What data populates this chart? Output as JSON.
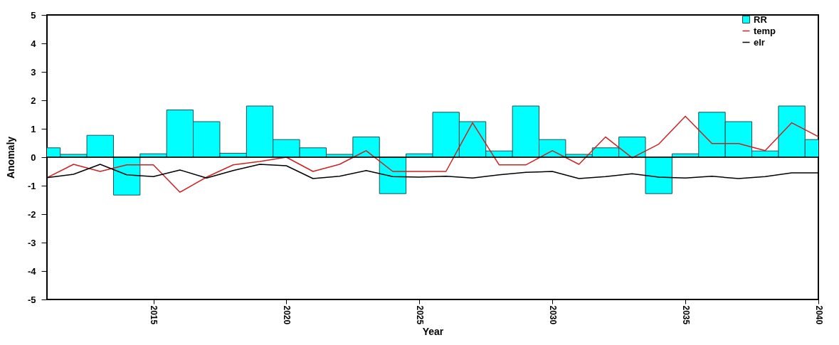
{
  "chart_data": {
    "type": "bar",
    "xlabel": "Year",
    "ylabel": "Anomaly",
    "x": [
      2011,
      2012,
      2013,
      2014,
      2015,
      2016,
      2017,
      2018,
      2019,
      2020,
      2021,
      2022,
      2023,
      2024,
      2025,
      2026,
      2027,
      2028,
      2029,
      2030,
      2031,
      2032,
      2033,
      2034,
      2035,
      2036,
      2037,
      2038,
      2039,
      2040
    ],
    "series": [
      {
        "name": "RR",
        "color": "#00ffff",
        "values": [
          0.33,
          0.1,
          0.77,
          -1.33,
          0.12,
          1.66,
          1.25,
          0.14,
          1.8,
          0.62,
          0.33,
          0.1,
          0.71,
          -1.28,
          0.12,
          1.58,
          1.25,
          0.22,
          1.8,
          0.62,
          0.1,
          0.33,
          0.71,
          -1.28,
          0.12,
          1.58,
          1.25,
          0.22,
          1.8,
          0.62
        ]
      },
      {
        "name": "temp",
        "type": "line",
        "color": "#cc2222",
        "values": [
          -0.72,
          -0.25,
          -0.5,
          -0.27,
          -0.27,
          -1.23,
          -0.7,
          -0.27,
          -0.15,
          0,
          -0.5,
          -0.25,
          0.23,
          -0.5,
          -0.5,
          -0.5,
          1.21,
          -0.27,
          -0.27,
          0.23,
          -0.25,
          0.71,
          -0.02,
          0.46,
          1.44,
          0.48,
          0.48,
          0.23,
          1.21,
          0.72
        ]
      },
      {
        "name": "elr",
        "type": "line",
        "color": "#000000",
        "values": [
          -0.72,
          -0.6,
          -0.25,
          -0.62,
          -0.68,
          -0.45,
          -0.73,
          -0.47,
          -0.25,
          -0.3,
          -0.75,
          -0.67,
          -0.47,
          -0.68,
          -0.7,
          -0.67,
          -0.73,
          -0.62,
          -0.53,
          -0.5,
          -0.75,
          -0.68,
          -0.58,
          -0.7,
          -0.73,
          -0.67,
          -0.75,
          -0.68,
          -0.55,
          -0.55
        ]
      }
    ],
    "xlim": [
      2011,
      2040
    ],
    "xticks": [
      2015,
      2020,
      2025,
      2030,
      2035,
      2040
    ],
    "ylim": [
      -5,
      5
    ],
    "yticks": [
      -5,
      -4,
      -3,
      -2,
      -1,
      0,
      1,
      2,
      3,
      4,
      5
    ],
    "ref_lines": [
      {
        "axis": "y",
        "value": 0,
        "color": "#000000"
      }
    ],
    "grid": false,
    "legend": "top right"
  }
}
